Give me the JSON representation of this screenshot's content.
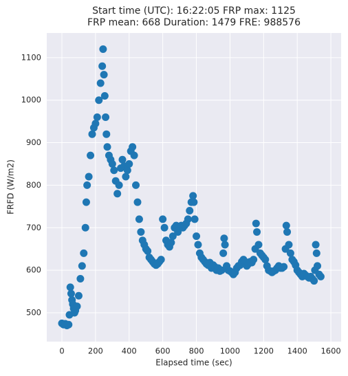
{
  "chart_data": {
    "type": "scatter",
    "title": "Start time (UTC): 16:22:05 FRP max: 1125",
    "subtitle": "FRP mean: 668 Duration: 1479 FRE: 988576",
    "x_label": "Elapsed time (sec)",
    "y_label": "FRFD (W/m2)",
    "color": "#1f77b4",
    "grid": true,
    "xlim": [
      -90,
      1661
    ],
    "ylim": [
      432,
      1158
    ],
    "xticks": [
      0,
      200,
      400,
      600,
      800,
      1000,
      1200,
      1400,
      1600
    ],
    "yticks": [
      500,
      600,
      700,
      800,
      900,
      1000,
      1100
    ],
    "x": [
      0,
      10,
      20,
      30,
      40,
      45,
      50,
      55,
      60,
      65,
      70,
      75,
      80,
      90,
      100,
      110,
      120,
      130,
      140,
      145,
      150,
      160,
      170,
      180,
      190,
      200,
      210,
      220,
      230,
      240,
      245,
      250,
      255,
      260,
      265,
      270,
      280,
      290,
      300,
      310,
      320,
      330,
      340,
      350,
      360,
      370,
      380,
      390,
      400,
      410,
      420,
      430,
      440,
      450,
      460,
      470,
      480,
      490,
      500,
      510,
      520,
      530,
      540,
      550,
      560,
      570,
      580,
      590,
      600,
      610,
      620,
      630,
      640,
      650,
      660,
      670,
      680,
      690,
      700,
      710,
      720,
      730,
      740,
      750,
      760,
      770,
      780,
      785,
      790,
      800,
      810,
      820,
      830,
      840,
      850,
      860,
      870,
      880,
      890,
      900,
      910,
      920,
      930,
      940,
      950,
      960,
      965,
      970,
      980,
      990,
      1000,
      1010,
      1020,
      1030,
      1040,
      1050,
      1060,
      1070,
      1080,
      1090,
      1100,
      1110,
      1120,
      1130,
      1140,
      1150,
      1155,
      1160,
      1170,
      1180,
      1190,
      1200,
      1210,
      1220,
      1230,
      1240,
      1250,
      1260,
      1270,
      1280,
      1290,
      1300,
      1310,
      1320,
      1330,
      1335,
      1340,
      1350,
      1360,
      1370,
      1380,
      1390,
      1400,
      1410,
      1420,
      1430,
      1440,
      1450,
      1460,
      1470,
      1480,
      1490,
      1500,
      1505,
      1510,
      1515,
      1520,
      1530,
      1540
    ],
    "values": [
      475,
      472,
      474,
      470,
      472,
      495,
      560,
      545,
      530,
      520,
      510,
      500,
      505,
      515,
      540,
      580,
      610,
      640,
      700,
      760,
      800,
      820,
      870,
      920,
      935,
      945,
      960,
      1000,
      1040,
      1080,
      1120,
      1060,
      1010,
      960,
      920,
      890,
      870,
      860,
      850,
      835,
      810,
      780,
      800,
      840,
      860,
      845,
      820,
      835,
      850,
      880,
      890,
      870,
      800,
      760,
      720,
      690,
      670,
      660,
      650,
      645,
      630,
      625,
      620,
      615,
      612,
      615,
      620,
      625,
      720,
      700,
      670,
      660,
      655,
      665,
      680,
      700,
      705,
      690,
      700,
      705,
      700,
      705,
      710,
      720,
      740,
      760,
      775,
      760,
      720,
      680,
      660,
      640,
      630,
      625,
      620,
      615,
      612,
      618,
      605,
      612,
      608,
      600,
      605,
      598,
      600,
      640,
      675,
      660,
      610,
      600,
      598,
      595,
      590,
      595,
      605,
      610,
      612,
      620,
      625,
      620,
      610,
      615,
      620,
      618,
      625,
      650,
      710,
      690,
      660,
      640,
      635,
      630,
      625,
      610,
      600,
      598,
      595,
      598,
      600,
      605,
      610,
      605,
      605,
      608,
      650,
      705,
      690,
      660,
      640,
      625,
      620,
      612,
      600,
      595,
      590,
      585,
      592,
      588,
      585,
      582,
      585,
      580,
      575,
      600,
      660,
      640,
      610,
      590,
      585
    ]
  }
}
